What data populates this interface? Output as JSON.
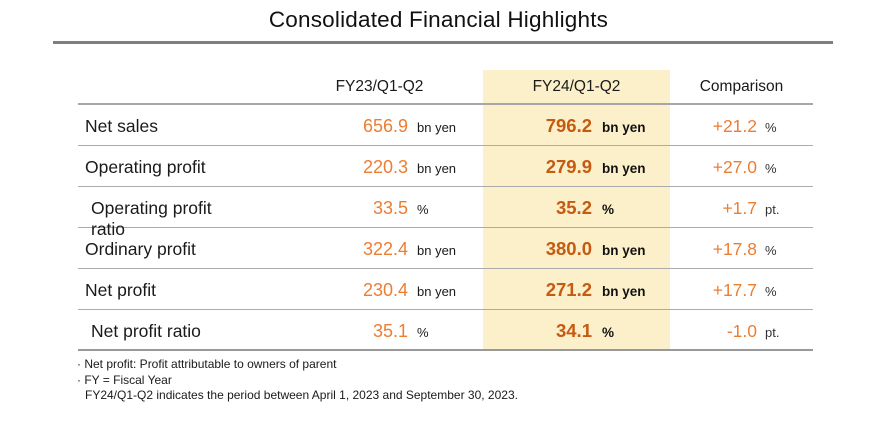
{
  "title": "Consolidated Financial Highlights",
  "table": {
    "headers": {
      "fy23": "FY23/Q1-Q2",
      "fy24": "FY24/Q1-Q2",
      "comparison": "Comparison"
    },
    "rows": [
      {
        "label": "Net sales",
        "fy23_value": "656.9",
        "fy23_unit": "bn yen",
        "fy24_value": "796.2",
        "fy24_unit": "bn yen",
        "comp_value": "+21.2",
        "comp_unit": "%"
      },
      {
        "label": "Operating profit",
        "fy23_value": "220.3",
        "fy23_unit": "bn yen",
        "fy24_value": "279.9",
        "fy24_unit": "bn yen",
        "comp_value": "+27.0",
        "comp_unit": "%"
      },
      {
        "label": "Operating profit ratio",
        "fy23_value": "33.5",
        "fy23_unit": "%",
        "fy24_value": "35.2",
        "fy24_unit": "%",
        "comp_value": "+1.7",
        "comp_unit": "pt."
      },
      {
        "label": "Ordinary profit",
        "fy23_value": "322.4",
        "fy23_unit": "bn yen",
        "fy24_value": "380.0",
        "fy24_unit": "bn yen",
        "comp_value": "+17.8",
        "comp_unit": "%"
      },
      {
        "label": "Net profit",
        "fy23_value": "230.4",
        "fy23_unit": "bn yen",
        "fy24_value": "271.2",
        "fy24_unit": "bn yen",
        "comp_value": "+17.7",
        "comp_unit": "%"
      },
      {
        "label": "Net profit ratio",
        "fy23_value": "35.1",
        "fy23_unit": "%",
        "fy24_value": "34.1",
        "fy24_unit": "%",
        "comp_value": "-1.0",
        "comp_unit": "pt."
      }
    ]
  },
  "footnotes": [
    "· Net profit: Profit attributable to owners of parent",
    "· FY = Fiscal Year",
    "FY24/Q1-Q2 indicates the period between April 1, 2023 and September 30, 2023."
  ],
  "colors": {
    "value_orange": "#ed7d31",
    "value_dark_orange": "#c55a11",
    "highlight_yellow": "#fcf0ca",
    "row_rule_gray": "#ababab",
    "title_rule_gray": "#7f7f7f"
  }
}
